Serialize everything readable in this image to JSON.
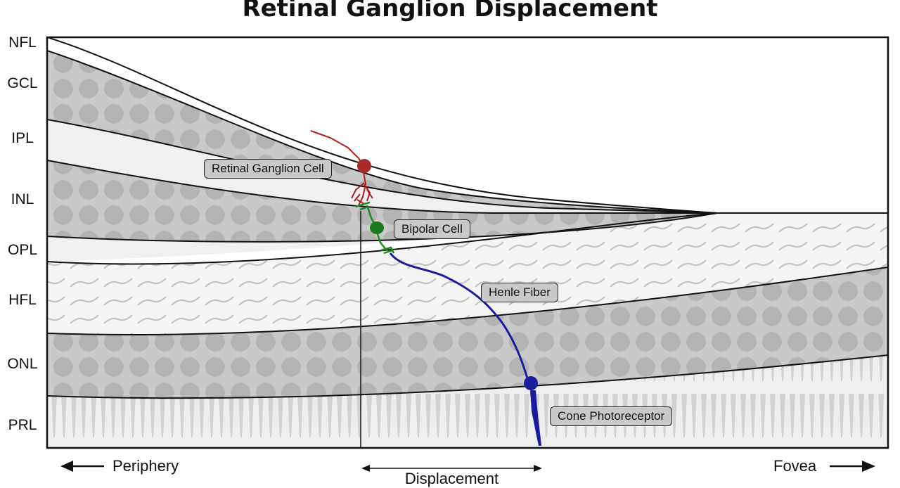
{
  "title": "Retinal Ganglion Displacement",
  "layers": [
    "NFL",
    "GCL",
    "IPL",
    "INL",
    "OPL",
    "HFL",
    "ONL",
    "PRL"
  ],
  "cells": {
    "ganglion": "Retinal Ganglion Cell",
    "bipolar": "Bipolar Cell",
    "henle": "Henle Fiber",
    "cone": "Cone Photoreceptor"
  },
  "axis": {
    "left": "Periphery",
    "right": "Fovea",
    "displacement": "Displacement"
  },
  "colors": {
    "ganglion": "#b01c1c",
    "bipolar": "#1c8a1c",
    "henle": "#1c1ca0",
    "cell_layer": "#c8c8c8",
    "plexiform_layer": "#f0f0f0"
  }
}
